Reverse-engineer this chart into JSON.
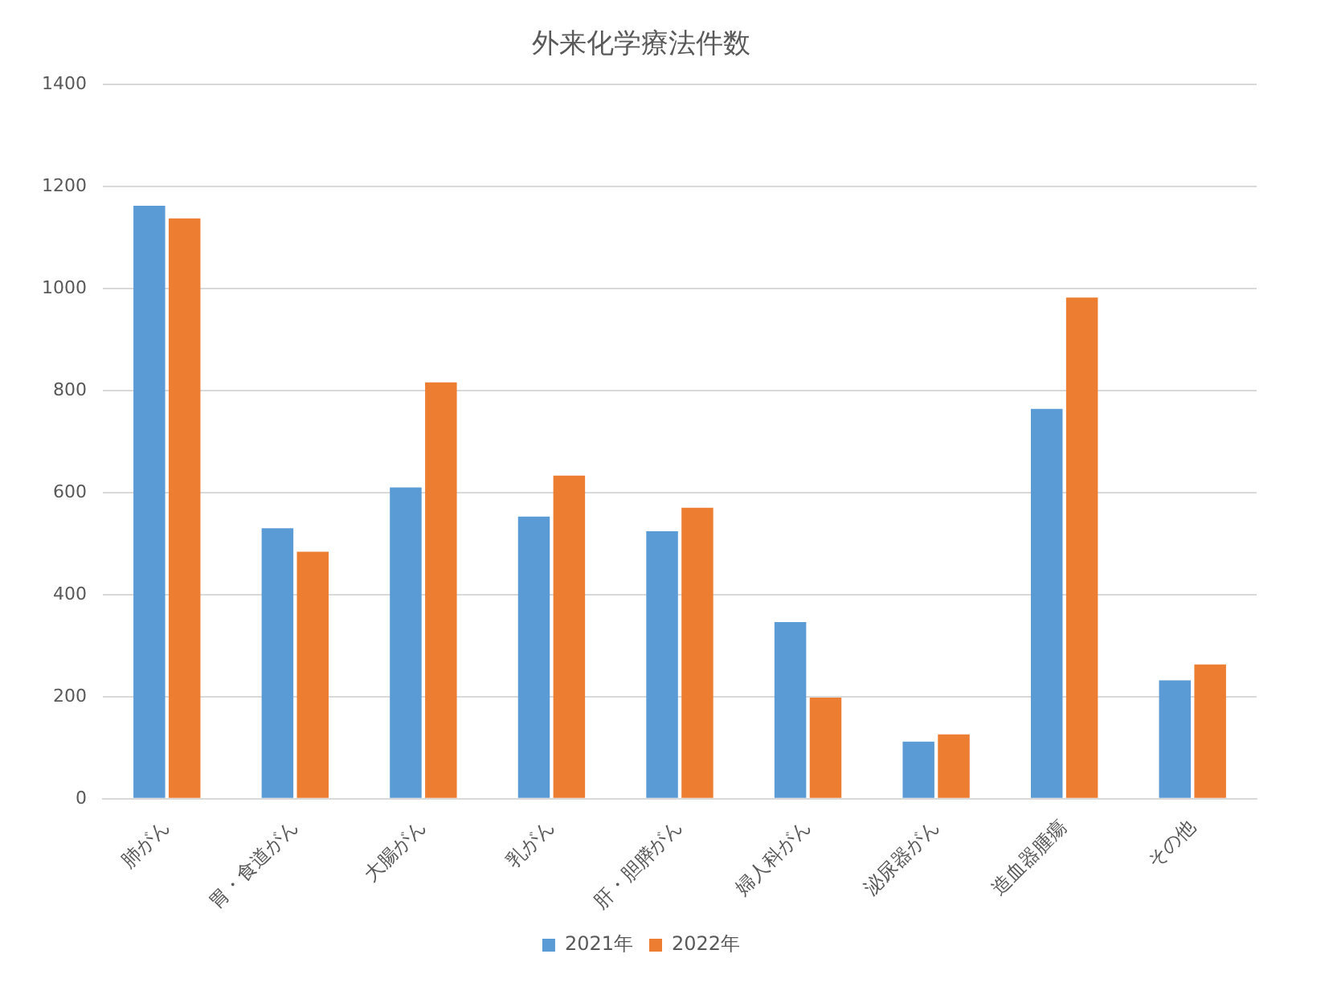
{
  "chart_data": {
    "type": "bar",
    "title": "外来化学療法件数",
    "categories": [
      "肺がん",
      "胃・食道がん",
      "大腸がん",
      "乳がん",
      "肝・胆膵がん",
      "婦人科がん",
      "泌尿器がん",
      "造血器腫瘍",
      "その他"
    ],
    "series": [
      {
        "name": "2021年",
        "color": "#5b9bd5",
        "values": [
          1162,
          530,
          610,
          553,
          524,
          346,
          112,
          764,
          232
        ]
      },
      {
        "name": "2022年",
        "color": "#ed7d31",
        "values": [
          1137,
          484,
          816,
          633,
          570,
          198,
          126,
          982,
          263
        ]
      }
    ],
    "ylim": [
      0,
      1400
    ],
    "yticks": [
      0,
      200,
      400,
      600,
      800,
      1000,
      1200,
      1400
    ],
    "grid": "y",
    "legend": "bottom"
  }
}
